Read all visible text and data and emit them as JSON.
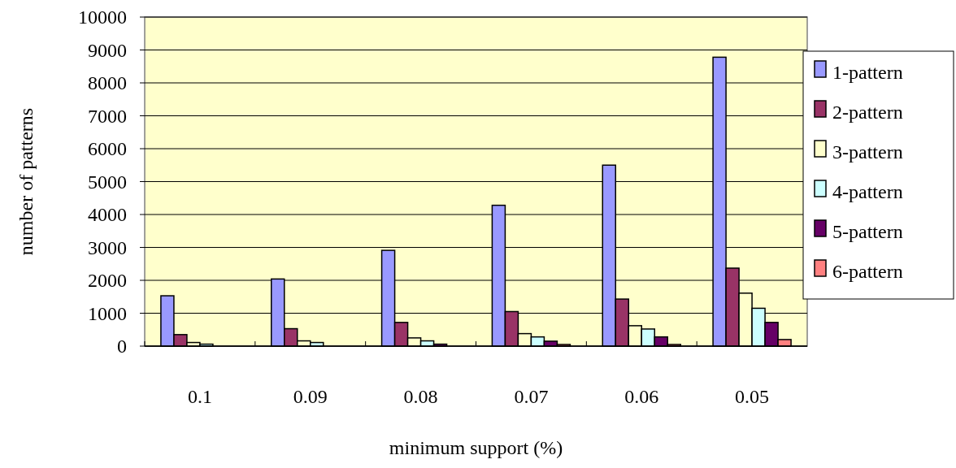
{
  "chart_data": {
    "type": "bar",
    "xlabel": "minimum support (%)",
    "ylabel": "number of patterns",
    "categories": [
      "0.1",
      "0.09",
      "0.08",
      "0.07",
      "0.06",
      "0.05"
    ],
    "series": [
      {
        "name": "1-pattern",
        "color": "#9999ff",
        "values": [
          1530,
          2040,
          2910,
          4280,
          5500,
          8780
        ]
      },
      {
        "name": "2-pattern",
        "color": "#993366",
        "values": [
          350,
          530,
          720,
          1050,
          1430,
          2370
        ]
      },
      {
        "name": "3-pattern",
        "color": "#ffffcc",
        "values": [
          110,
          160,
          250,
          380,
          620,
          1610
        ]
      },
      {
        "name": "4-pattern",
        "color": "#ccffff",
        "values": [
          60,
          110,
          160,
          280,
          520,
          1150
        ]
      },
      {
        "name": "5-pattern",
        "color": "#660066",
        "values": [
          null,
          null,
          60,
          150,
          280,
          720
        ]
      },
      {
        "name": "6-pattern",
        "color": "#ff8080",
        "values": [
          null,
          null,
          null,
          50,
          50,
          200
        ]
      }
    ],
    "ylim": [
      0,
      10000
    ],
    "yticks": [
      0,
      1000,
      2000,
      3000,
      4000,
      5000,
      6000,
      7000,
      8000,
      9000,
      10000
    ],
    "grid": "y",
    "legend": "right"
  }
}
